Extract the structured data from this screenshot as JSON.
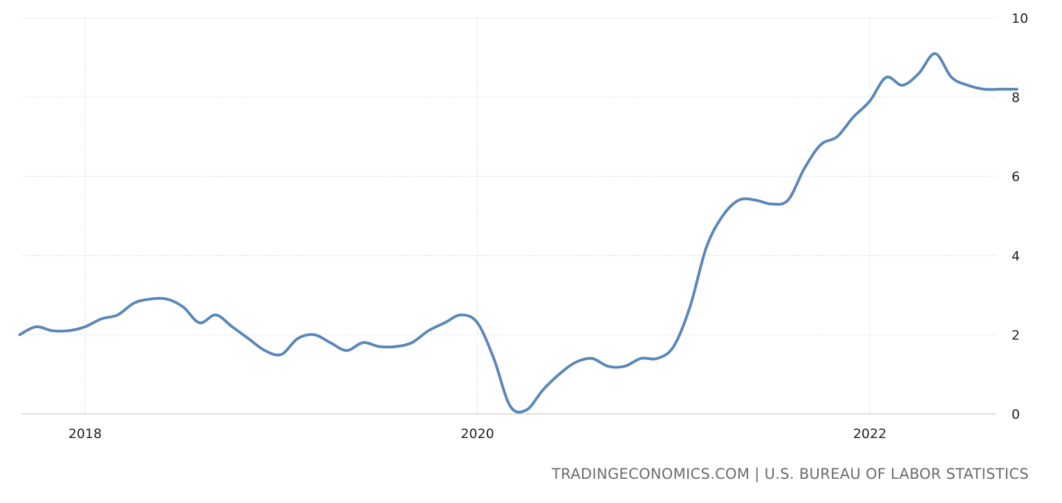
{
  "source_text": "TRADINGECONOMICS.COM | U.S. BUREAU OF LABOR STATISTICS",
  "colors": {
    "line": "#5a86b8",
    "grid": "#c8c8c8",
    "axis": "#cccccc",
    "text": "#1f1f1f",
    "source": "#6b6b6b"
  },
  "chart_data": {
    "type": "line",
    "title": "",
    "xlabel": "",
    "ylabel": "",
    "xlim": [
      "2017-09",
      "2022-10"
    ],
    "ylim": [
      0,
      10
    ],
    "y_ticks": [
      0,
      2,
      4,
      6,
      8,
      10
    ],
    "x_ticks": [
      "2018",
      "2020",
      "2022"
    ],
    "grid": true,
    "y_axis_side": "right",
    "x": [
      "2017-09",
      "2017-10",
      "2017-11",
      "2017-12",
      "2018-01",
      "2018-02",
      "2018-03",
      "2018-04",
      "2018-05",
      "2018-06",
      "2018-07",
      "2018-08",
      "2018-09",
      "2018-10",
      "2018-11",
      "2018-12",
      "2019-01",
      "2019-02",
      "2019-03",
      "2019-04",
      "2019-05",
      "2019-06",
      "2019-07",
      "2019-08",
      "2019-09",
      "2019-10",
      "2019-11",
      "2019-12",
      "2020-01",
      "2020-02",
      "2020-03",
      "2020-04",
      "2020-05",
      "2020-06",
      "2020-07",
      "2020-08",
      "2020-09",
      "2020-10",
      "2020-11",
      "2020-12",
      "2021-01",
      "2021-02",
      "2021-03",
      "2021-04",
      "2021-05",
      "2021-06",
      "2021-07",
      "2021-08",
      "2021-09",
      "2021-10",
      "2021-11",
      "2021-12",
      "2022-01",
      "2022-02",
      "2022-03",
      "2022-04",
      "2022-05",
      "2022-06",
      "2022-07",
      "2022-08",
      "2022-09",
      "2022-10"
    ],
    "series": [
      {
        "values": [
          2.0,
          2.2,
          2.1,
          2.1,
          2.2,
          2.4,
          2.5,
          2.8,
          2.9,
          2.9,
          2.7,
          2.3,
          2.5,
          2.2,
          1.9,
          1.6,
          1.5,
          1.9,
          2.0,
          1.8,
          1.6,
          1.8,
          1.7,
          1.7,
          1.8,
          2.1,
          2.3,
          2.5,
          2.3,
          1.4,
          0.2,
          0.1,
          0.6,
          1.0,
          1.3,
          1.4,
          1.2,
          1.2,
          1.4,
          1.4,
          1.7,
          2.7,
          4.2,
          5.0,
          5.4,
          5.4,
          5.3,
          5.4,
          6.2,
          6.8,
          7.0,
          7.5,
          7.9,
          8.5,
          8.3,
          8.6,
          9.1,
          8.5,
          8.3,
          8.2,
          8.2,
          8.2
        ]
      }
    ]
  }
}
